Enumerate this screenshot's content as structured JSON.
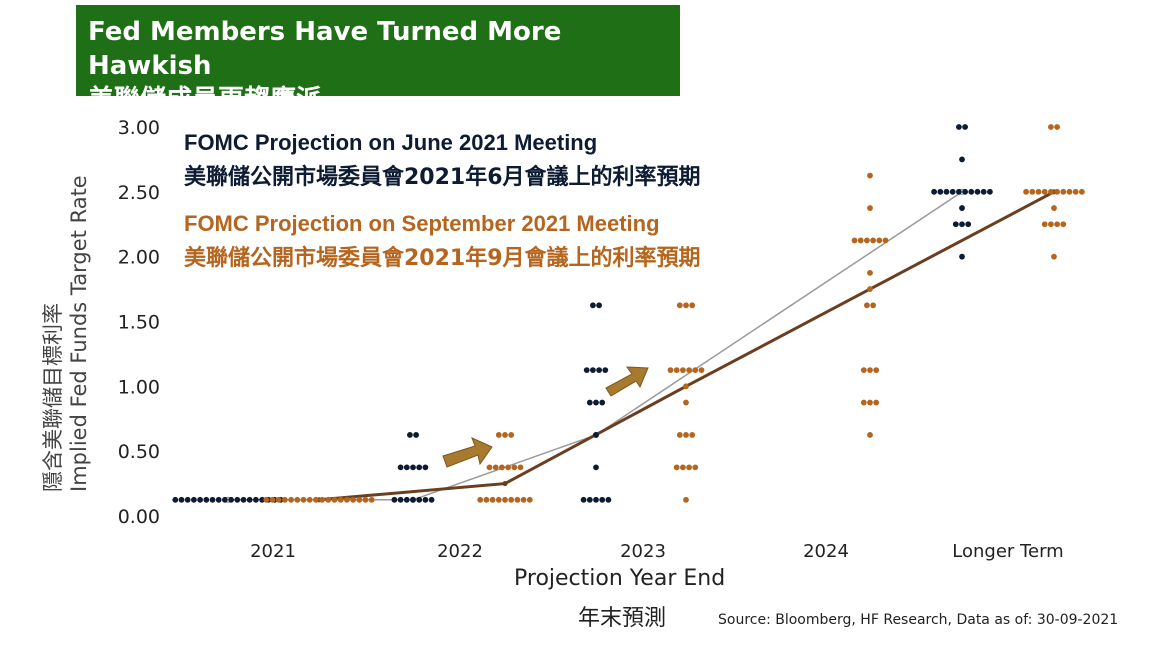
{
  "title": {
    "en": "Fed Members Have Turned More Hawkish",
    "zh": "美聯儲成員更趨鷹派"
  },
  "source": "Source: Bloomberg, HF Research, Data as of: 30-09-2021",
  "colors": {
    "june": "#0d1b33",
    "september": "#b5651d",
    "arrow": "#a87a2e",
    "june_median_line": "#9a9a9a",
    "sep_median_line": "#6b3e1f"
  },
  "chart_data": {
    "type": "scatter",
    "xlabel": "Projection Year End",
    "xlabel_zh": "年末預測",
    "ylabel": "Implied Fed Funds Target Rate",
    "ylabel_zh": "隱含美聯儲目標利率",
    "ylim": [
      0,
      3.0
    ],
    "yticks": [
      "0.00",
      "0.50",
      "1.00",
      "1.50",
      "2.00",
      "2.50",
      "3.00"
    ],
    "categories": [
      "2021",
      "2022",
      "2023",
      "2024",
      "Longer Term"
    ],
    "legend": [
      {
        "en": "FOMC Projection on June 2021 Meeting",
        "zh": "美聯儲公開市場委員會2021年6月會議上的利率預期"
      },
      {
        "en": "FOMC Projection on September 2021 Meeting",
        "zh": "美聯儲公開市場委員會2021年9月會議上的利率預期"
      }
    ],
    "series": [
      {
        "id": "june",
        "dots": [
          [
            [
              0.125,
              18
            ]
          ],
          [
            [
              0.125,
              7
            ],
            [
              0.375,
              5
            ],
            [
              0.625,
              2
            ]
          ],
          [
            [
              0.125,
              5
            ],
            [
              0.375,
              1
            ],
            [
              0.625,
              1
            ],
            [
              0.875,
              3
            ],
            [
              1.125,
              4
            ],
            [
              1.625,
              2
            ]
          ],
          [],
          [
            [
              2.0,
              1
            ],
            [
              2.25,
              3
            ],
            [
              2.375,
              1
            ],
            [
              2.5,
              10
            ],
            [
              2.75,
              1
            ],
            [
              3.0,
              2
            ]
          ]
        ],
        "median": [
          0.125,
          0.125,
          0.625,
          null,
          2.5
        ]
      },
      {
        "id": "september",
        "dots": [
          [
            [
              0.125,
              18
            ]
          ],
          [
            [
              0.125,
              9
            ],
            [
              0.375,
              6
            ],
            [
              0.625,
              3
            ]
          ],
          [
            [
              0.125,
              1
            ],
            [
              0.375,
              4
            ],
            [
              0.625,
              3
            ],
            [
              0.875,
              1
            ],
            [
              1.0,
              1
            ],
            [
              1.125,
              6
            ],
            [
              1.625,
              3
            ]
          ],
          [
            [
              0.625,
              1
            ],
            [
              0.875,
              3
            ],
            [
              1.125,
              3
            ],
            [
              1.625,
              2
            ],
            [
              1.75,
              1
            ],
            [
              1.875,
              1
            ],
            [
              2.125,
              6
            ],
            [
              2.375,
              1
            ],
            [
              2.625,
              1
            ]
          ],
          [
            [
              2.0,
              1
            ],
            [
              2.25,
              4
            ],
            [
              2.375,
              1
            ],
            [
              2.5,
              10
            ],
            [
              3.0,
              2
            ]
          ]
        ],
        "median": [
          0.125,
          0.25,
          1.0,
          1.75,
          2.5
        ]
      }
    ]
  }
}
